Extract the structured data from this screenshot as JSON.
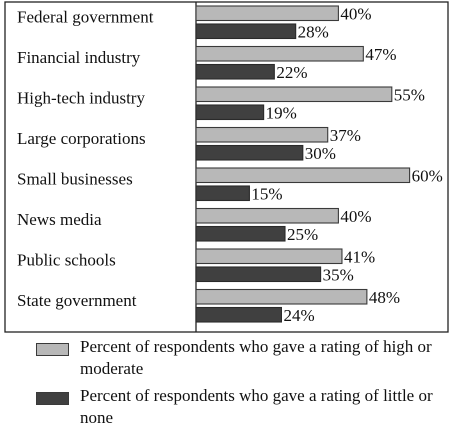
{
  "chart_data": {
    "type": "bar",
    "orientation": "horizontal",
    "categories": [
      "Federal government",
      "Financial industry",
      "High-tech industry",
      "Large corporations",
      "Small businesses",
      "News media",
      "Public schools",
      "State government"
    ],
    "series": [
      {
        "name": "Percent of respondents who gave a rating of high or moderate",
        "values": [
          40,
          47,
          55,
          37,
          60,
          40,
          41,
          48
        ],
        "color": "#b8b8b8"
      },
      {
        "name": "Percent of respondents who gave a rating of little or none",
        "values": [
          28,
          22,
          19,
          30,
          15,
          25,
          35,
          24
        ],
        "color": "#404040"
      }
    ],
    "value_suffix": "%",
    "xlim": [
      0,
      70
    ],
    "grid": false,
    "legend_position": "bottom"
  },
  "legend": {
    "high_label": "Percent of respondents who gave a rating of high or moderate",
    "little_label": "Percent of respondents who gave a rating of little or none"
  }
}
